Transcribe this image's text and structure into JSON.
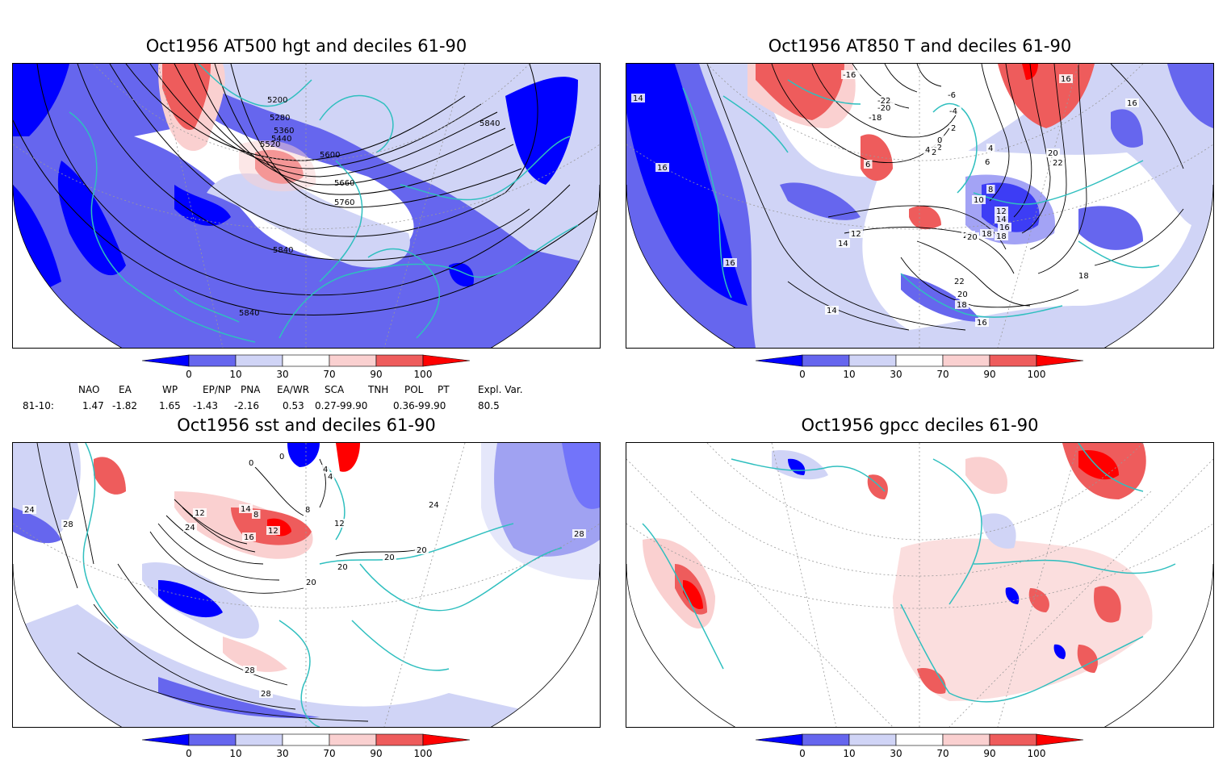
{
  "panels": [
    {
      "title": "Oct1956 AT500 hgt and deciles 61-90",
      "contour_labels": [
        "5200",
        "5280",
        "5360",
        "5440",
        "5520",
        "5600",
        "5660",
        "5760",
        "5840",
        "5840",
        "5840"
      ]
    },
    {
      "title": "Oct1956 AT850 T and deciles 61-90",
      "contour_labels": [
        "14",
        "16",
        "16",
        "-16",
        "-20",
        "-22",
        "-18",
        "-6",
        "-4",
        "2",
        "0",
        "4",
        "6",
        "-2",
        "6",
        "2",
        "4",
        "16",
        "20",
        "22",
        "8",
        "10",
        "12",
        "14",
        "16",
        "18",
        "22",
        "12",
        "14",
        "20",
        "18",
        "22",
        "20",
        "18",
        "16",
        "14",
        "16",
        "18"
      ]
    },
    {
      "title": "Oct1956 sst and deciles 61-90",
      "contour_labels": [
        "24",
        "28",
        "0",
        "4",
        "0",
        "4",
        "12",
        "14",
        "8",
        "8",
        "12",
        "16",
        "12",
        "24",
        "20",
        "20",
        "20",
        "20",
        "24",
        "28",
        "28",
        "28"
      ]
    },
    {
      "title": "Oct1956 gpcc deciles 61-90",
      "contour_labels": []
    }
  ],
  "colorbar": {
    "tick_labels": [
      "0",
      "10",
      "30",
      "70",
      "90",
      "100"
    ],
    "colors": [
      "#0000ff",
      "#6666ee",
      "#d0d4f6",
      "#ffffff",
      "#fad0d0",
      "#ee5c5c",
      "#ff0000"
    ]
  },
  "indices": {
    "names": [
      "NAO",
      "EA",
      "WP",
      "EP/NP",
      "PNA",
      "EA/WR",
      "SCA",
      "TNH",
      "POL",
      "PT",
      "Expl. Var."
    ],
    "row_label": "81-10:",
    "values": [
      "1.47",
      "-1.82",
      "1.65",
      "-1.43",
      "-2.16",
      "0.53",
      "0.27-99.90",
      "0.36-99.90",
      "80.5"
    ]
  },
  "colors": {
    "coastline": "#2fbfbf",
    "deep_blue": "#0000ff",
    "mid_blue": "#6666ee",
    "light_blue": "#d0d4f6",
    "light_red": "#fad0d0",
    "mid_red": "#ee5c5c",
    "deep_red": "#ff0000"
  }
}
